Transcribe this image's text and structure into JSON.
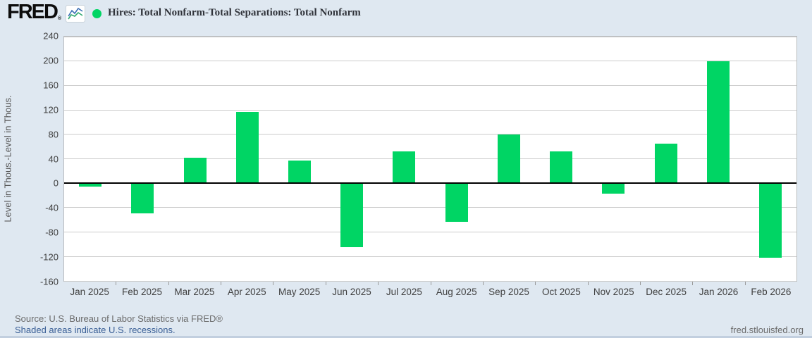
{
  "header": {
    "logo_text": "FRED",
    "logo_registered": "®",
    "legend": {
      "dot_color": "#00d564",
      "label": "Hires: Total Nonfarm-Total Separations: Total Nonfarm"
    }
  },
  "chart_data": {
    "type": "bar",
    "title": "Hires: Total Nonfarm-Total Separations: Total Nonfarm",
    "categories": [
      "Jan 2025",
      "Feb 2025",
      "Mar 2025",
      "Apr 2025",
      "May 2025",
      "Jun 2025",
      "Jul 2025",
      "Aug 2025",
      "Sep 2025",
      "Oct 2025",
      "Nov 2025",
      "Dec 2025",
      "Jan 2026",
      "Feb 2026"
    ],
    "values": [
      -5,
      -49,
      42,
      117,
      37,
      -105,
      52,
      -63,
      80,
      52,
      -17,
      65,
      200,
      -122
    ],
    "xlabel": "",
    "ylabel": "Level in Thous.-Level in Thous.",
    "ylim": [
      -160,
      240
    ],
    "yticks": [
      240,
      200,
      160,
      120,
      80,
      40,
      0,
      -40,
      -80,
      -120,
      -160
    ],
    "bar_color": "#00d564",
    "grid": true,
    "legend_position": "top-left"
  },
  "footer": {
    "source": "Source: U.S. Bureau of Labor Statistics via FRED®",
    "recession_note": "Shaded areas indicate U.S. recessions.",
    "site": "fred.stlouisfed.org"
  }
}
